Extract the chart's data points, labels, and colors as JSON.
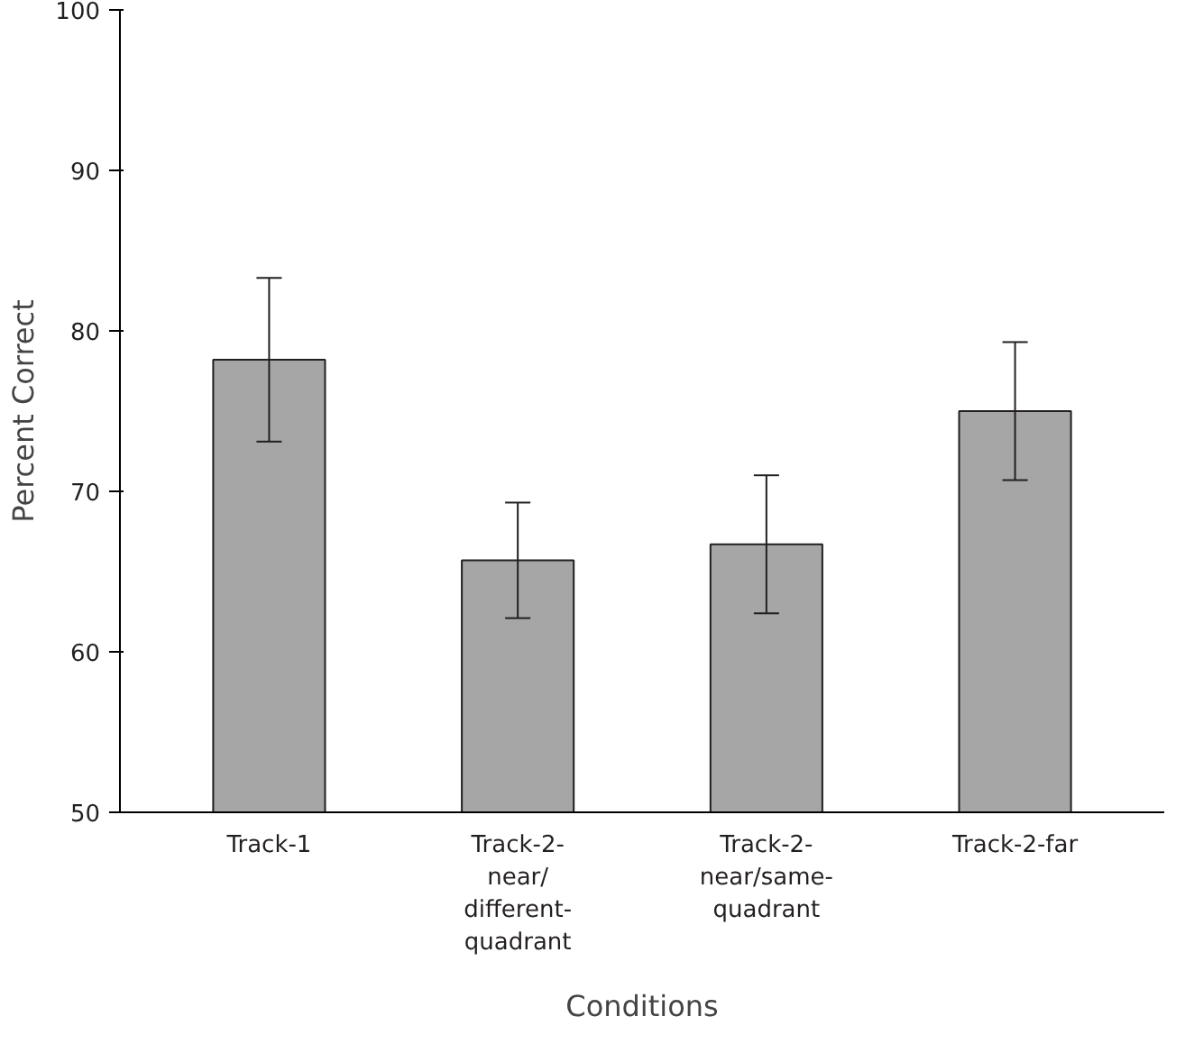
{
  "chart_data": {
    "type": "bar",
    "xlabel": "Conditions",
    "ylabel": "Percent Correct",
    "categories": [
      "Track-1",
      "Track-2-near/different-quadrant",
      "Track-2-near/same-quadrant",
      "Track-2-far"
    ],
    "values": [
      78.2,
      65.7,
      66.7,
      75.0
    ],
    "errors": [
      5.1,
      3.6,
      4.3,
      4.3
    ],
    "color": "#a6a6a6",
    "ylim": [
      50,
      100
    ],
    "yticks": [
      50,
      60,
      70,
      80,
      90,
      100
    ],
    "grid": false
  }
}
